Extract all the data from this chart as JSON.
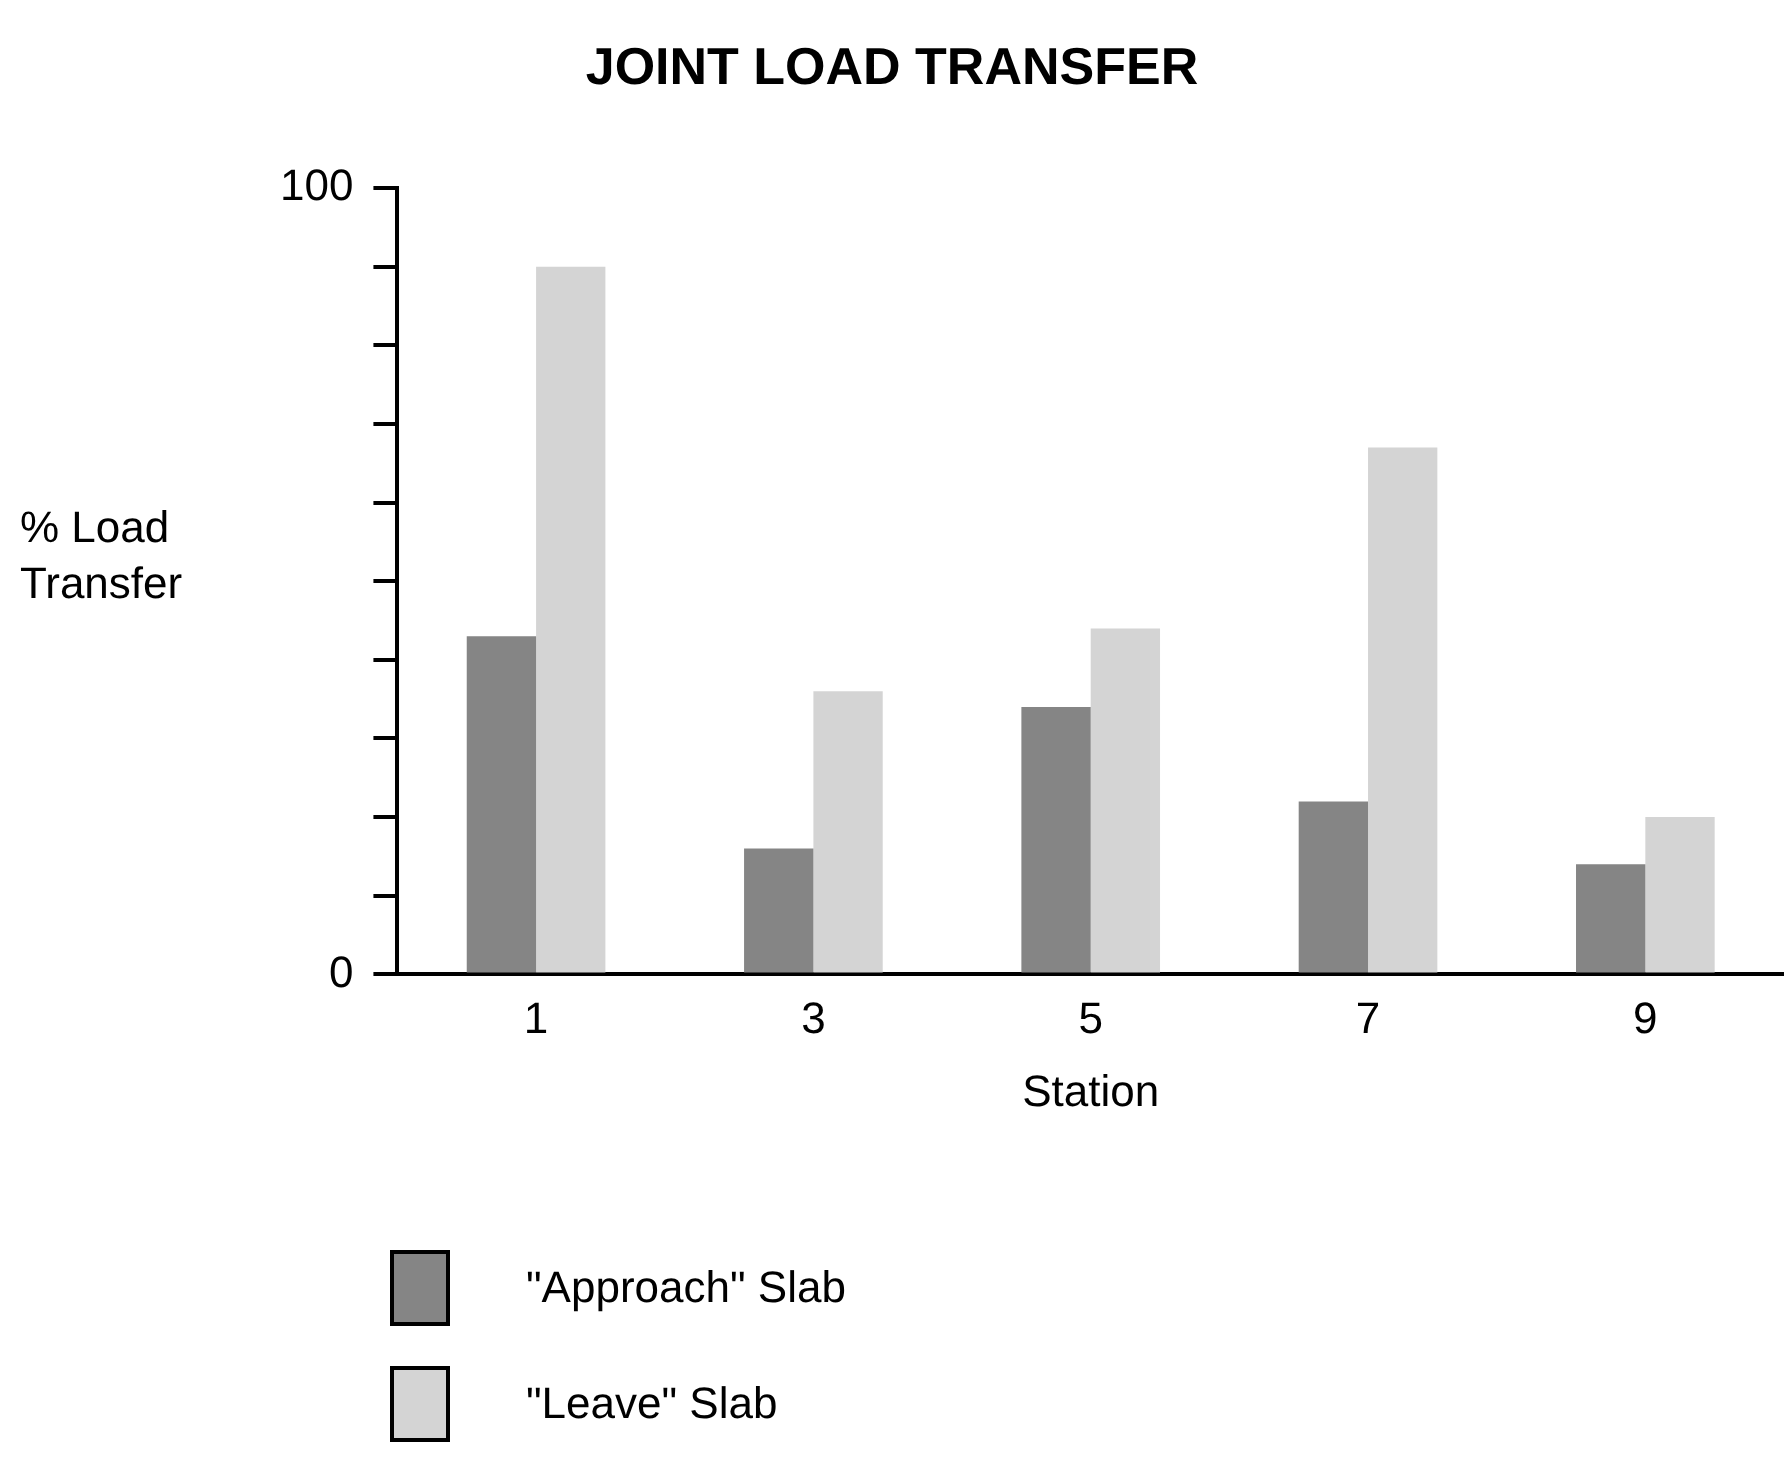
{
  "chart_data": {
    "type": "bar",
    "title": "JOINT LOAD TRANSFER",
    "xlabel": "Station",
    "ylabel": "% Load Transfer",
    "categories": [
      "1",
      "3",
      "5",
      "7",
      "9"
    ],
    "series": [
      {
        "name": "\"Approach\" Slab",
        "color": "#858585",
        "values": [
          43,
          16,
          34,
          22,
          14
        ]
      },
      {
        "name": "\"Leave\" Slab",
        "color": "#d4d4d4",
        "values": [
          90,
          36,
          44,
          67,
          20
        ]
      }
    ],
    "ylim": [
      0,
      100
    ],
    "yticks": [
      0,
      {
        "value": 10,
        "label": null
      },
      {
        "value": 20,
        "label": null
      },
      {
        "value": 30,
        "label": null
      },
      {
        "value": 40,
        "label": null
      },
      {
        "value": 50,
        "label": null
      },
      {
        "value": 60,
        "label": null
      },
      {
        "value": 70,
        "label": null
      },
      {
        "value": 80,
        "label": null
      },
      {
        "value": 90,
        "label": null
      },
      100
    ],
    "grid": false,
    "legend": "bottom left"
  }
}
